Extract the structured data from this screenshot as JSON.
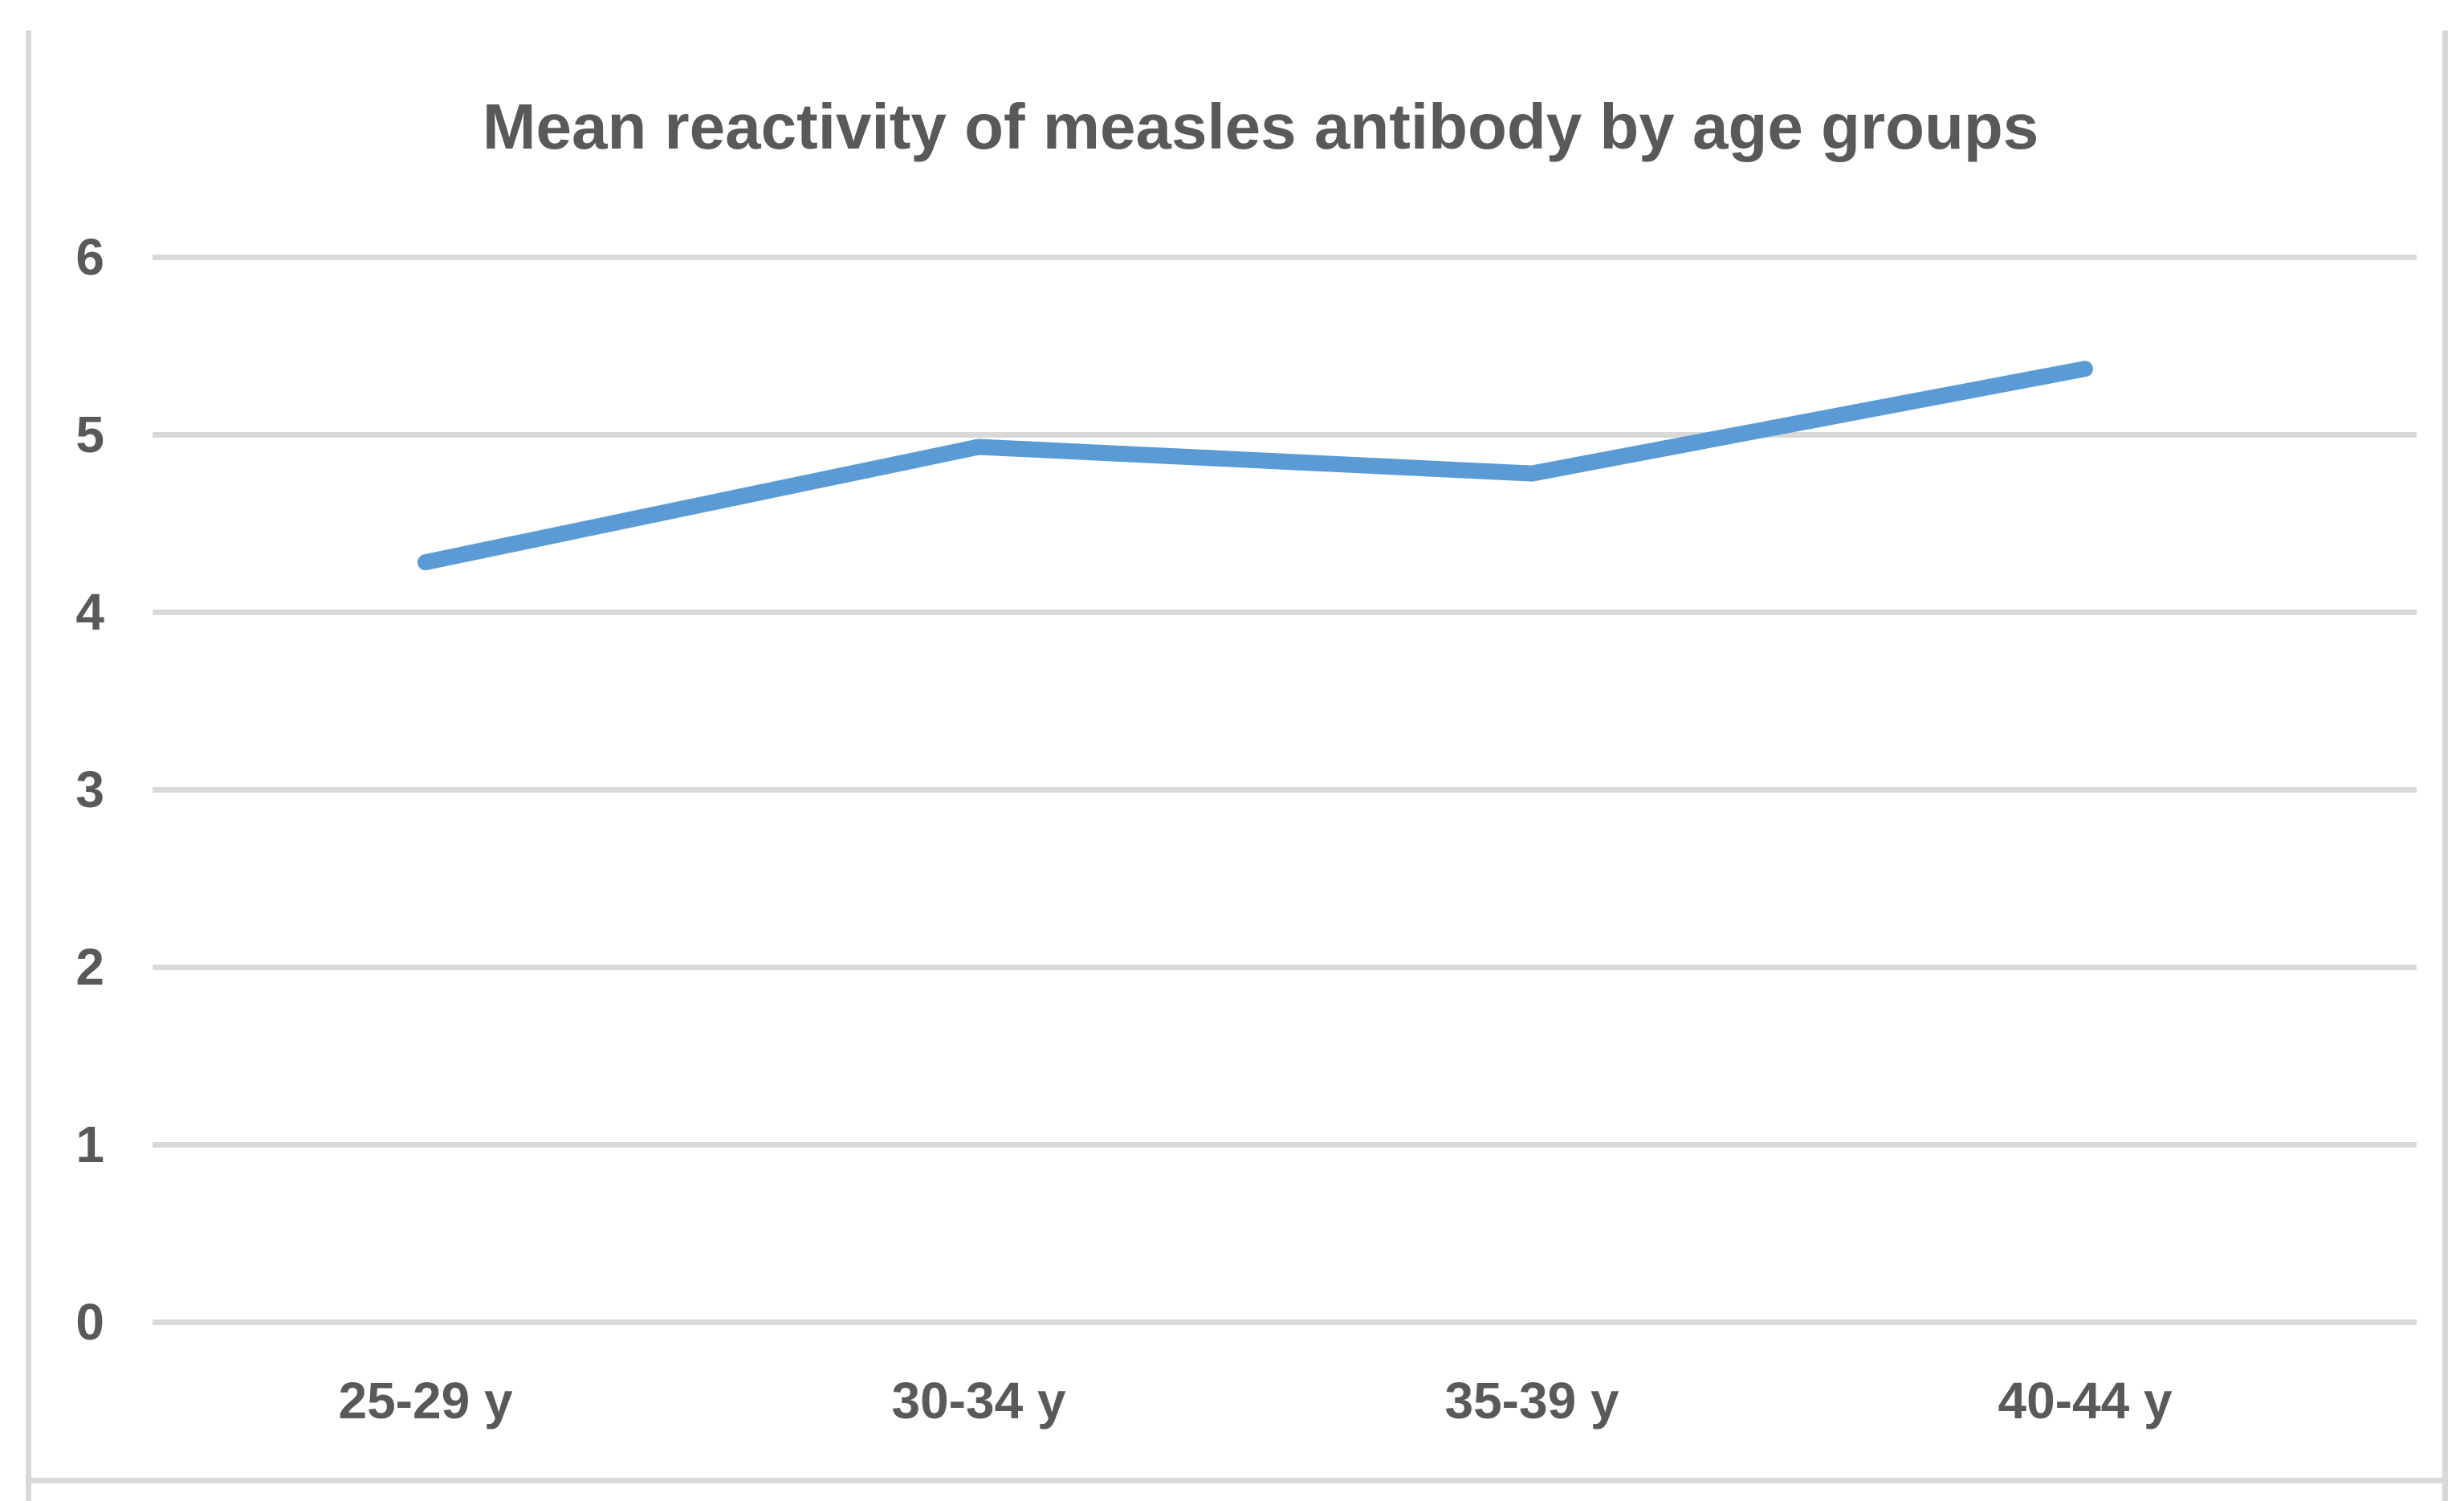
{
  "chart_data": {
    "type": "line",
    "title": "Mean reactivity of measles antibody by age groups",
    "categories": [
      "25-29 y",
      "30-34 y",
      "35-39 y",
      "40-44 y"
    ],
    "values": [
      4.28,
      4.93,
      4.78,
      5.37
    ],
    "xlabel": "",
    "ylabel": "",
    "ylim": [
      0,
      6
    ],
    "yticks": [
      0,
      1,
      2,
      3,
      4,
      5,
      6
    ],
    "grid": "horizontal",
    "legend": "none",
    "colors": {
      "line": "#5B9BD5",
      "text": "#595959",
      "grid": "#D9D9D9",
      "frame": "#D9D9D9",
      "background": "#FFFFFF"
    }
  }
}
